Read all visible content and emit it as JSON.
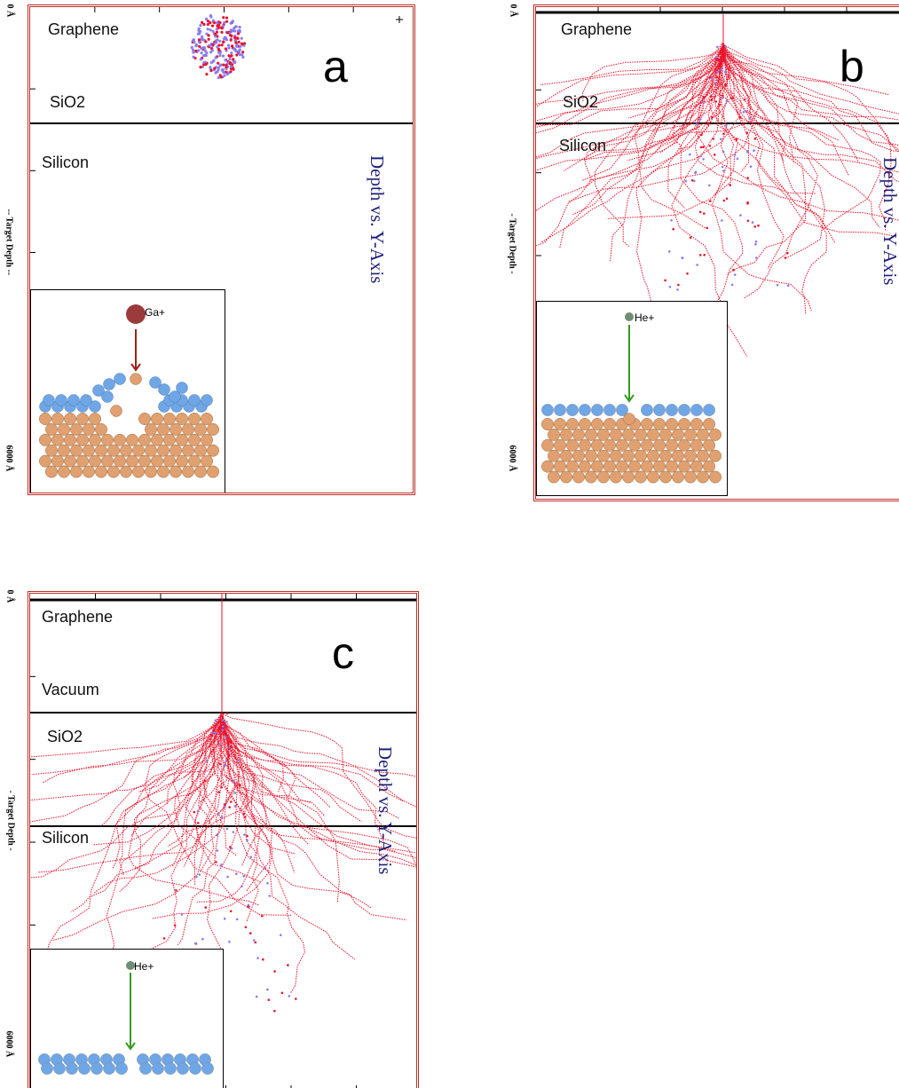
{
  "axis": {
    "top": "0 Å",
    "bottom": "6000 Å",
    "middle_a": "-- Target Depth --",
    "middle_b": "- Target Depth -",
    "middle_c": "- Target Depth -"
  },
  "panels": [
    {
      "id": "a",
      "letter": "a",
      "title": "Depth vs. Y-Axis",
      "layers": [
        "Graphene",
        "SiO2",
        "Silicon"
      ],
      "ion": "Ga+",
      "colors": {
        "track": "#e8132b",
        "recoil": "#8a7cf0",
        "ion": "#9b3b3b",
        "arrow": "#9b2418"
      }
    },
    {
      "id": "b",
      "letter": "b",
      "title": "Depth vs. Y-Axis",
      "layers": [
        "Graphene",
        "SiO2",
        "Silicon"
      ],
      "ion": "He+",
      "colors": {
        "track": "#e8132b",
        "recoil": "#8a7cf0",
        "ion": "#6f8d74",
        "arrow": "#3a9a24"
      }
    },
    {
      "id": "c",
      "letter": "c",
      "title": "Depth vs. Y-Axis",
      "layers": [
        "Graphene",
        "Vacuum",
        "SiO2",
        "Silicon"
      ],
      "ion": "He+",
      "colors": {
        "track": "#e8132b",
        "recoil": "#8a7cf0",
        "ion": "#6f8d74",
        "arrow": "#3a9a24"
      }
    }
  ],
  "atom_colors": {
    "graphene": "#6fa6e6",
    "substrate": "#e0a070"
  }
}
